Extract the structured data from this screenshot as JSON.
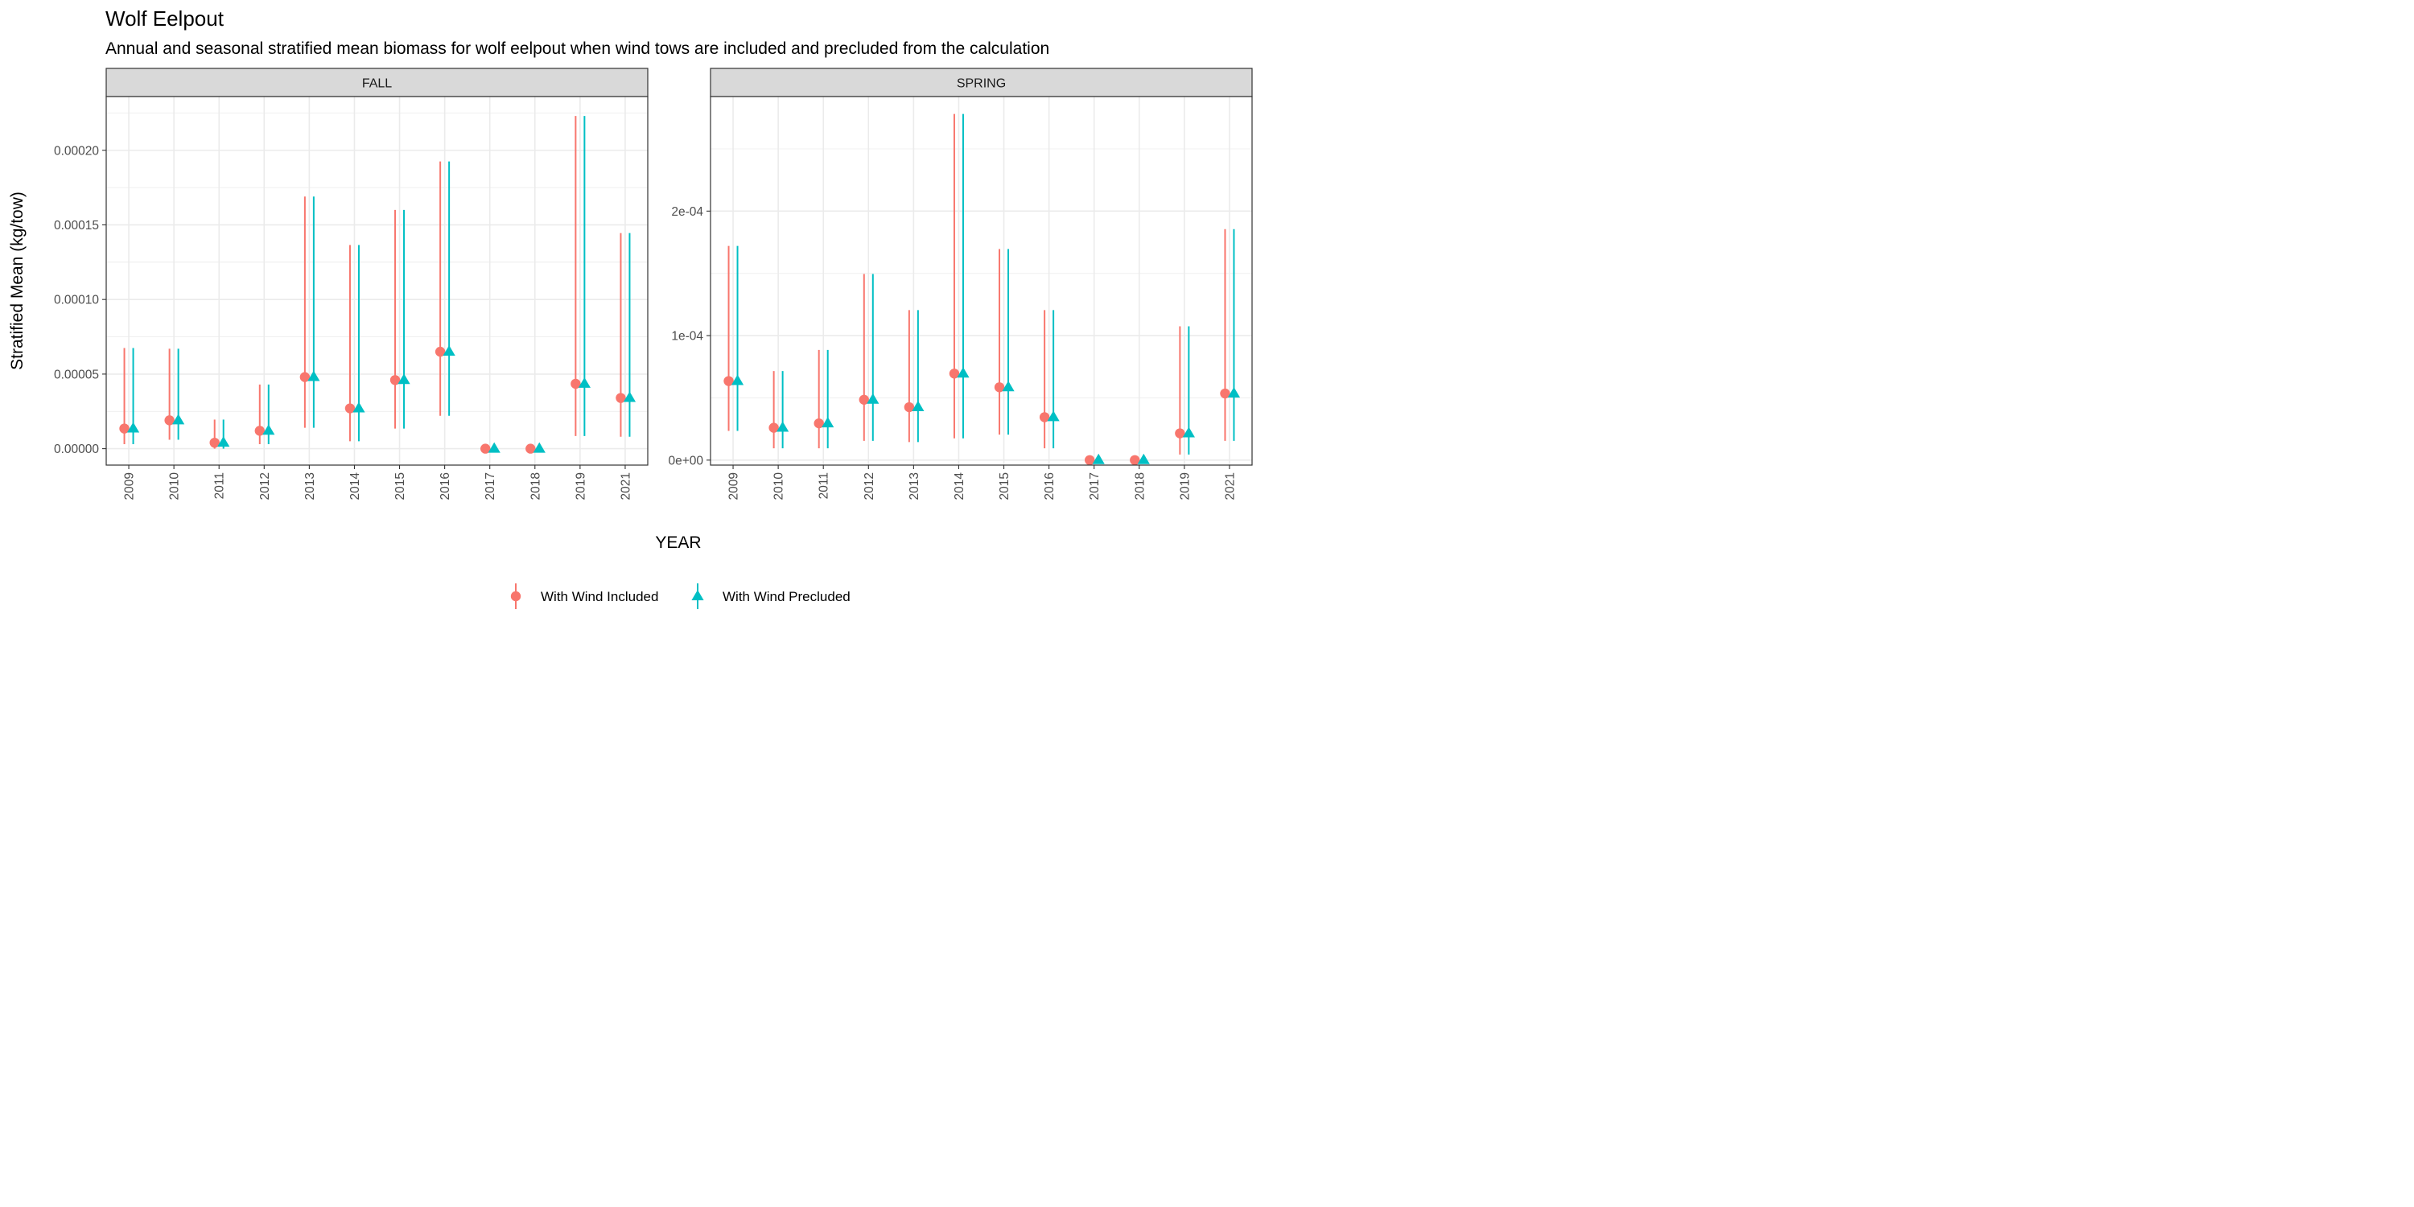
{
  "chart_data": {
    "type": "scatter",
    "title": "Wolf Eelpout",
    "subtitle": "Annual and seasonal stratified mean biomass for wolf eelpout when wind tows are included and precluded from the calculation",
    "xlabel": "YEAR",
    "ylabel": "Stratified Mean (kg/tow)",
    "categories": [
      "2009",
      "2010",
      "2011",
      "2012",
      "2013",
      "2014",
      "2015",
      "2016",
      "2017",
      "2018",
      "2019",
      "2021"
    ],
    "grid": true,
    "legend_position": "bottom",
    "legend": [
      {
        "name": "With Wind Included",
        "color": "#F8766D",
        "shape": "circle"
      },
      {
        "name": "With Wind Precluded",
        "color": "#00BFC4",
        "shape": "triangle"
      }
    ],
    "panels": [
      {
        "label": "FALL",
        "ylim": [
          -1.1e-05,
          0.000236
        ],
        "y_ticks": [
          0,
          5e-05,
          0.0001,
          0.00015,
          0.0002
        ],
        "y_tick_labels": [
          "0.00000",
          "0.00005",
          "0.00010",
          "0.00015",
          "0.00020"
        ],
        "series": [
          {
            "name": "With Wind Included",
            "values": [
              1.35e-05,
              1.9e-05,
              4e-06,
              1.2e-05,
              4.8e-05,
              2.7e-05,
              4.6e-05,
              6.5e-05,
              0,
              0,
              4.35e-05,
              3.4e-05
            ],
            "lower": [
              3e-06,
              6e-06,
              0,
              3e-06,
              1.4e-05,
              5e-06,
              1.35e-05,
              2.2e-05,
              0,
              0,
              8.5e-06,
              8e-06
            ],
            "upper": [
              6.75e-05,
              6.7e-05,
              1.95e-05,
              4.3e-05,
              0.000169,
              0.0001365,
              0.00016,
              0.0001925,
              0,
              0,
              0.000223,
              0.0001445
            ]
          },
          {
            "name": "With Wind Precluded",
            "values": [
              1.35e-05,
              1.9e-05,
              4e-06,
              1.2e-05,
              4.8e-05,
              2.7e-05,
              4.6e-05,
              6.5e-05,
              0,
              0,
              4.35e-05,
              3.4e-05
            ],
            "lower": [
              3e-06,
              6e-06,
              0,
              3e-06,
              1.4e-05,
              5e-06,
              1.35e-05,
              2.2e-05,
              0,
              0,
              8.5e-06,
              8e-06
            ],
            "upper": [
              6.75e-05,
              6.7e-05,
              1.95e-05,
              4.3e-05,
              0.000169,
              0.0001365,
              0.00016,
              0.0001925,
              0,
              0,
              0.000223,
              0.0001445
            ]
          }
        ]
      },
      {
        "label": "SPRING",
        "ylim": [
          -4e-06,
          0.000292
        ],
        "y_ticks": [
          0,
          0.0001,
          0.0002
        ],
        "y_tick_labels": [
          "0e+00",
          "1e-04",
          "2e-04"
        ],
        "series": [
          {
            "name": "With Wind Included",
            "values": [
              6.35e-05,
              2.6e-05,
              2.95e-05,
              4.85e-05,
              4.25e-05,
              6.95e-05,
              5.85e-05,
              3.45e-05,
              0,
              0,
              2.15e-05,
              5.35e-05
            ],
            "lower": [
              2.35e-05,
              9.5e-06,
              9.5e-06,
              1.55e-05,
              1.45e-05,
              1.75e-05,
              2.05e-05,
              9.5e-06,
              0,
              0,
              4.5e-06,
              1.55e-05
            ],
            "upper": [
              0.000172,
              7.15e-05,
              8.85e-05,
              0.0001495,
              0.0001205,
              0.000278,
              0.0001695,
              0.0001205,
              0,
              0,
              0.0001075,
              0.0001855
            ]
          },
          {
            "name": "With Wind Precluded",
            "values": [
              6.35e-05,
              2.6e-05,
              2.95e-05,
              4.85e-05,
              4.25e-05,
              6.95e-05,
              5.85e-05,
              3.45e-05,
              0,
              0,
              2.15e-05,
              5.35e-05
            ],
            "lower": [
              2.35e-05,
              9.5e-06,
              9.5e-06,
              1.55e-05,
              1.45e-05,
              1.75e-05,
              2.05e-05,
              9.5e-06,
              0,
              0,
              4.5e-06,
              1.55e-05
            ],
            "upper": [
              0.000172,
              7.15e-05,
              8.85e-05,
              0.0001495,
              0.0001205,
              0.000278,
              0.0001695,
              0.0001205,
              0,
              0,
              0.0001075,
              0.0001855
            ]
          }
        ]
      }
    ]
  }
}
